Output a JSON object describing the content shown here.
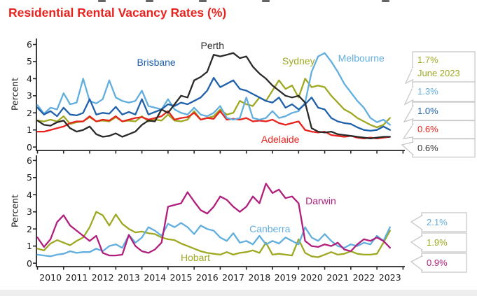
{
  "title": {
    "text": "Residential Rental Vacancy Rates (%)",
    "color": "#e62420"
  },
  "artifacts": {
    "cropped_text_marks_x": [
      140,
      208,
      284,
      374,
      545
    ]
  },
  "footer": {
    "strip_color": "#eeeeef"
  },
  "axis": {
    "color": "#262626",
    "tick_label_color": "#1a1a1a"
  },
  "callout_style": {
    "border_color": "#c9c9c9",
    "fill": "#ffffff"
  },
  "chart_data": {
    "type": "line",
    "title": "Residential Rental Vacancy Rates (%)",
    "as_of_label": "June 2023",
    "x_start": 2010.0,
    "x_step": 0.25,
    "xlim": [
      2009.96,
      2024.07
    ],
    "x_tick_years": [
      2010,
      2011,
      2012,
      2013,
      2014,
      2015,
      2016,
      2017,
      2018,
      2019,
      2020,
      2021,
      2022,
      2023
    ],
    "grid": false,
    "panels": [
      {
        "id": "top-panel",
        "ylabel": "Percent",
        "ylim": [
          0,
          6
        ],
        "yticks": [
          0,
          1,
          2,
          3,
          4,
          5,
          6
        ],
        "series": [
          {
            "name": "Sydney",
            "color": "#9ea821",
            "latest": "1.7%",
            "label_pos": {
              "year": 2020.0,
              "value": 5.05
            },
            "values": [
              1.55,
              1.5,
              1.6,
              1.5,
              1.8,
              1.35,
              1.45,
              1.5,
              1.75,
              1.5,
              1.55,
              1.5,
              1.75,
              1.5,
              1.55,
              1.5,
              1.8,
              1.5,
              1.6,
              1.55,
              1.9,
              1.55,
              1.5,
              1.6,
              2.1,
              1.6,
              1.7,
              1.8,
              2.2,
              1.9,
              2.0,
              2.7,
              2.5,
              2.4,
              2.9,
              2.7,
              3.3,
              3.9,
              3.4,
              3.6,
              2.9,
              4.0,
              3.5,
              3.6,
              3.5,
              3.0,
              2.6,
              2.2,
              2.0,
              1.7,
              1.5,
              1.3,
              1.15,
              1.3,
              1.7
            ]
          },
          {
            "name": "Adelaide",
            "color": "#e8231e",
            "latest": "0.6%",
            "label_pos": {
              "year": 2019.3,
              "value": 0.45
            },
            "values": [
              0.9,
              0.9,
              1.0,
              1.1,
              1.2,
              1.4,
              1.5,
              1.5,
              1.8,
              1.5,
              1.6,
              1.55,
              1.8,
              1.5,
              1.6,
              1.7,
              1.75,
              1.6,
              1.7,
              1.8,
              2.1,
              1.6,
              1.7,
              1.75,
              2.0,
              1.6,
              1.7,
              1.65,
              2.1,
              1.6,
              1.65,
              1.6,
              1.7,
              1.5,
              1.55,
              1.5,
              1.6,
              1.4,
              1.3,
              1.4,
              1.5,
              1.0,
              0.9,
              0.85,
              0.9,
              0.7,
              0.65,
              0.6,
              0.65,
              0.55,
              0.5,
              0.55,
              0.5,
              0.55,
              0.6
            ]
          },
          {
            "name": "Melbourne",
            "color": "#62aede",
            "latest": "1.3%",
            "label_pos": {
              "year": 2022.4,
              "value": 5.2
            },
            "values": [
              2.45,
              1.95,
              2.3,
              2.2,
              3.15,
              2.5,
              2.6,
              4.0,
              2.7,
              2.55,
              2.8,
              3.9,
              2.9,
              2.7,
              2.6,
              2.7,
              3.3,
              2.4,
              2.3,
              2.2,
              2.8,
              2.2,
              2.0,
              1.9,
              2.3,
              1.9,
              1.8,
              2.0,
              2.4,
              1.7,
              1.6,
              1.7,
              2.9,
              1.7,
              1.6,
              1.7,
              2.1,
              1.7,
              1.8,
              2.0,
              2.1,
              2.6,
              4.4,
              5.3,
              5.5,
              5.0,
              4.4,
              3.7,
              3.2,
              2.7,
              2.3,
              1.7,
              1.45,
              1.6,
              1.3
            ]
          },
          {
            "name": "Brisbane",
            "color": "#2061ab",
            "latest": "1.0%",
            "label_pos": {
              "year": 2014.55,
              "value": 4.95
            },
            "values": [
              2.3,
              1.9,
              2.1,
              1.8,
              2.3,
              1.9,
              1.85,
              2.0,
              2.8,
              1.9,
              2.0,
              1.95,
              2.35,
              1.9,
              2.05,
              1.9,
              2.8,
              1.9,
              2.05,
              2.2,
              2.5,
              2.4,
              2.6,
              2.5,
              2.7,
              2.9,
              3.3,
              4.05,
              3.5,
              3.7,
              3.9,
              3.4,
              3.3,
              3.1,
              2.9,
              2.7,
              2.6,
              2.9,
              2.3,
              2.5,
              2.2,
              2.5,
              2.9,
              2.3,
              2.2,
              1.7,
              1.5,
              1.4,
              1.35,
              1.15,
              1.0,
              0.95,
              1.0,
              1.2,
              1.0
            ]
          },
          {
            "name": "Perth",
            "color": "#2b2a29",
            "latest": "0.6%",
            "label_pos": {
              "year": 2016.7,
              "value": 5.93
            },
            "values": [
              1.55,
              1.3,
              1.25,
              1.45,
              1.55,
              1.1,
              0.9,
              1.0,
              1.2,
              0.75,
              0.6,
              0.65,
              0.8,
              0.6,
              0.75,
              0.9,
              1.3,
              1.55,
              1.5,
              2.2,
              2.0,
              2.5,
              3.0,
              2.9,
              3.9,
              4.1,
              4.4,
              5.4,
              5.3,
              5.4,
              5.5,
              5.2,
              5.3,
              4.7,
              4.3,
              4.0,
              3.6,
              3.3,
              3.0,
              2.9,
              3.0,
              2.6,
              1.1,
              0.9,
              0.85,
              0.9,
              0.75,
              0.7,
              0.65,
              0.6,
              0.55,
              0.5,
              0.55,
              0.6,
              0.6
            ]
          }
        ],
        "callouts": [
          {
            "series": "Sydney",
            "lines": [
              "1.7%",
              "June 2023"
            ],
            "color": "#9ea821"
          },
          {
            "series": "Melbourne",
            "lines": [
              "1.3%"
            ],
            "color": "#62aede"
          },
          {
            "series": "Brisbane",
            "lines": [
              "1.0%"
            ],
            "color": "#2061ab"
          },
          {
            "series": "Adelaide",
            "lines": [
              "0.6%"
            ],
            "color": "#e8231e"
          },
          {
            "series": "Perth",
            "lines": [
              "0.6%"
            ],
            "color": "#3a3a3a"
          }
        ]
      },
      {
        "id": "bottom-panel",
        "ylabel": "Percent",
        "ylim": [
          0,
          6
        ],
        "yticks": [
          0,
          1,
          2,
          3,
          4,
          5,
          6
        ],
        "series": [
          {
            "name": "Hobart",
            "color": "#9ea821",
            "latest": "1.9%",
            "label_pos": {
              "year": 2016.05,
              "value": 0.35
            },
            "values": [
              0.85,
              0.75,
              1.15,
              1.35,
              1.2,
              1.05,
              1.3,
              1.5,
              2.1,
              3.0,
              2.8,
              2.2,
              2.85,
              2.3,
              2.0,
              1.8,
              1.85,
              1.75,
              1.7,
              1.5,
              1.4,
              1.35,
              1.15,
              1.0,
              0.85,
              0.7,
              0.6,
              0.55,
              0.5,
              0.65,
              0.5,
              0.6,
              0.65,
              0.75,
              0.6,
              1.2,
              0.5,
              0.55,
              0.5,
              0.45,
              1.4,
              0.6,
              0.4,
              0.35,
              0.5,
              0.65,
              0.5,
              0.55,
              0.7,
              0.55,
              0.5,
              0.5,
              0.55,
              1.2,
              1.9
            ]
          },
          {
            "name": "Canberra",
            "color": "#62aede",
            "latest": "2.1%",
            "label_pos": {
              "year": 2018.9,
              "value": 2.0
            },
            "values": [
              0.5,
              0.45,
              0.4,
              0.5,
              0.55,
              0.7,
              0.6,
              0.65,
              0.65,
              0.85,
              0.7,
              1.0,
              1.1,
              0.9,
              1.65,
              1.2,
              1.5,
              2.1,
              1.9,
              1.6,
              2.3,
              2.1,
              2.35,
              2.1,
              1.7,
              2.2,
              2.0,
              1.9,
              1.5,
              1.3,
              1.75,
              1.2,
              1.3,
              1.1,
              1.6,
              1.1,
              1.3,
              1.15,
              1.5,
              1.3,
              1.1,
              2.1,
              1.5,
              1.3,
              1.7,
              1.3,
              1.0,
              0.9,
              1.1,
              1.0,
              1.2,
              1.1,
              1.6,
              1.3,
              2.1
            ]
          },
          {
            "name": "Darwin",
            "color": "#b01f7d",
            "latest": "0.9%",
            "label_pos": {
              "year": 2020.85,
              "value": 3.65
            },
            "values": [
              1.5,
              0.95,
              1.4,
              2.4,
              2.8,
              2.2,
              1.9,
              1.6,
              1.3,
              1.6,
              0.6,
              0.45,
              0.45,
              0.5,
              1.65,
              1.0,
              0.7,
              0.6,
              0.8,
              1.2,
              3.3,
              3.4,
              3.5,
              4.15,
              3.6,
              3.1,
              2.9,
              3.3,
              3.9,
              3.7,
              3.3,
              3.0,
              3.3,
              3.9,
              3.5,
              4.65,
              4.1,
              4.3,
              3.8,
              3.9,
              3.5,
              1.3,
              1.0,
              0.95,
              1.1,
              1.0,
              1.2,
              0.8,
              0.7,
              1.1,
              1.4,
              1.3,
              1.5,
              1.3,
              0.9
            ]
          }
        ],
        "callouts": [
          {
            "series": "Canberra",
            "lines": [
              "2.1%"
            ],
            "color": "#62aede"
          },
          {
            "series": "Hobart",
            "lines": [
              "1.9%"
            ],
            "color": "#9ea821"
          },
          {
            "series": "Darwin",
            "lines": [
              "0.9%"
            ],
            "color": "#b01f7d"
          }
        ]
      }
    ]
  }
}
